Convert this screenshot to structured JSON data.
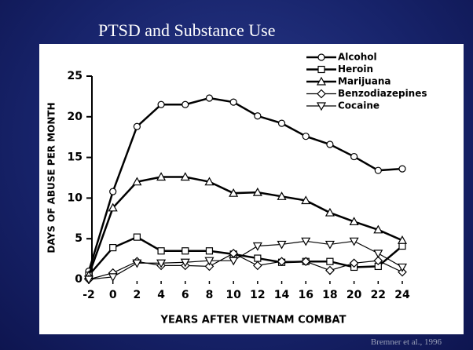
{
  "chart_data": {
    "type": "line",
    "title": "PTSD and Substance Use",
    "x_label": "YEARS AFTER VIETNAM COMBAT",
    "y_label": "DAYS OF ABUSE PER MONTH",
    "source": "Bremner et al., 1996",
    "x": [
      -2,
      0,
      2,
      4,
      6,
      8,
      10,
      12,
      14,
      16,
      18,
      20,
      22,
      24
    ],
    "xlim": [
      -2,
      24
    ],
    "xticks": [
      -2,
      0,
      2,
      4,
      6,
      8,
      10,
      12,
      14,
      16,
      18,
      20,
      22,
      24
    ],
    "ylim": [
      0,
      25
    ],
    "yticks": [
      0,
      5,
      10,
      15,
      20,
      25
    ],
    "legend": "upper right",
    "series": [
      {
        "name": "Alcohol",
        "color": "#000000",
        "marker": "circle",
        "line_width": 2.5,
        "values": [
          1,
          10.8,
          18.8,
          21.5,
          21.5,
          22.3,
          21.8,
          20.1,
          19.2,
          17.6,
          16.6,
          15.1,
          13.4,
          13.6
        ]
      },
      {
        "name": "Heroin",
        "color": "#000000",
        "marker": "square",
        "line_width": 2.5,
        "values": [
          0.5,
          3.9,
          5.2,
          3.5,
          3.5,
          3.5,
          3.1,
          2.6,
          2.1,
          2.2,
          2.2,
          1.5,
          1.6,
          4.1
        ]
      },
      {
        "name": "Marijuana",
        "color": "#000000",
        "marker": "triangle",
        "line_width": 2.5,
        "values": [
          0.5,
          8.8,
          12,
          12.6,
          12.6,
          12,
          10.6,
          10.7,
          10.2,
          9.7,
          8.2,
          7.1,
          6.1,
          4.8
        ]
      },
      {
        "name": "Benzodiazepines",
        "color": "#000000",
        "marker": "diamond",
        "line_width": 1.2,
        "values": [
          0,
          0.8,
          2.2,
          1.7,
          1.7,
          1.6,
          3.2,
          1.7,
          2.2,
          2.2,
          1.1,
          2,
          2.3,
          0.9
        ]
      },
      {
        "name": "Cocaine",
        "color": "#000000",
        "marker": "triangle-down",
        "line_width": 1.2,
        "values": [
          0,
          0.3,
          2,
          2,
          2.1,
          2.3,
          2.3,
          4.1,
          4.3,
          4.7,
          4.3,
          4.7,
          3.2,
          1.5
        ]
      }
    ]
  }
}
